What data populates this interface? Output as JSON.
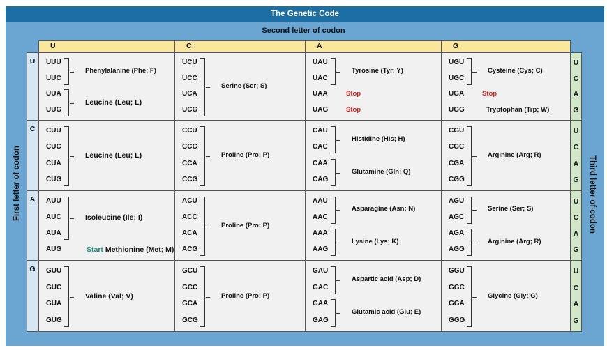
{
  "title": "The Genetic Code",
  "second_label": "Second letter of codon",
  "first_label": "First letter of codon",
  "third_label": "Third letter of codon",
  "second_letters": [
    "U",
    "C",
    "A",
    "G"
  ],
  "first_letters": [
    "U",
    "C",
    "A",
    "G"
  ],
  "third_letters": [
    "U",
    "C",
    "A",
    "G"
  ],
  "cells": [
    [
      {
        "codons": [
          "UUU",
          "UUC",
          "UUA",
          "UUG"
        ],
        "groups": [
          {
            "rows": [
              0,
              1
            ],
            "label": "Phenylalanine (Phe; F)"
          },
          {
            "rows": [
              2,
              3
            ],
            "label": "Leucine (Leu; L)",
            "big": true
          }
        ]
      },
      {
        "codons": [
          "UCU",
          "UCC",
          "UCA",
          "UCG"
        ],
        "groups": [
          {
            "rows": [
              0,
              3
            ],
            "label": "Serine (Ser; S)"
          }
        ]
      },
      {
        "codons": [
          "UAU",
          "UAC",
          "UAA",
          "UAG"
        ],
        "groups": [
          {
            "rows": [
              0,
              1
            ],
            "label": "Tyrosine (Tyr; Y)"
          },
          {
            "rows": [
              2
            ],
            "label": "Stop",
            "stop": true
          },
          {
            "rows": [
              3
            ],
            "label": "Stop",
            "stop": true
          }
        ]
      },
      {
        "codons": [
          "UGU",
          "UGC",
          "UGA",
          "UGG"
        ],
        "groups": [
          {
            "rows": [
              0,
              1
            ],
            "label": "Cysteine (Cys; C)"
          },
          {
            "rows": [
              2
            ],
            "label": "Stop",
            "stop": true
          },
          {
            "rows": [
              3
            ],
            "label": "Tryptophan (Trp; W)"
          }
        ]
      }
    ],
    [
      {
        "codons": [
          "CUU",
          "CUC",
          "CUA",
          "CUG"
        ],
        "groups": [
          {
            "rows": [
              0,
              3
            ],
            "label": "Leucine (Leu; L)",
            "big": true
          }
        ]
      },
      {
        "codons": [
          "CCU",
          "CCC",
          "CCA",
          "CCG"
        ],
        "groups": [
          {
            "rows": [
              0,
              3
            ],
            "label": "Proline (Pro; P)"
          }
        ]
      },
      {
        "codons": [
          "CAU",
          "CAC",
          "CAA",
          "CAG"
        ],
        "groups": [
          {
            "rows": [
              0,
              1
            ],
            "label": "Histidine (His; H)"
          },
          {
            "rows": [
              2,
              3
            ],
            "label": "Glutamine (Gln; Q)"
          }
        ]
      },
      {
        "codons": [
          "CGU",
          "CGC",
          "CGA",
          "CGG"
        ],
        "groups": [
          {
            "rows": [
              0,
              3
            ],
            "label": "Arginine (Arg; R)"
          }
        ]
      }
    ],
    [
      {
        "codons": [
          "AUU",
          "AUC",
          "AUA",
          "AUG"
        ],
        "groups": [
          {
            "rows": [
              0,
              2
            ],
            "label": "Isoleucine (Ile; I)",
            "big": true
          },
          {
            "rows": [
              3
            ],
            "label": "Methionine (Met; M)",
            "prefix": "Start",
            "big": true
          }
        ]
      },
      {
        "codons": [
          "ACU",
          "ACC",
          "ACA",
          "ACG"
        ],
        "groups": [
          {
            "rows": [
              0,
              3
            ],
            "label": "Proline (Pro; P)"
          }
        ]
      },
      {
        "codons": [
          "AAU",
          "AAC",
          "AAA",
          "AAG"
        ],
        "groups": [
          {
            "rows": [
              0,
              1
            ],
            "label": "Asparagine (Asn; N)"
          },
          {
            "rows": [
              2,
              3
            ],
            "label": "Lysine (Lys; K)"
          }
        ]
      },
      {
        "codons": [
          "AGU",
          "AGC",
          "AGA",
          "AGG"
        ],
        "groups": [
          {
            "rows": [
              0,
              1
            ],
            "label": "Serine (Ser; S)"
          },
          {
            "rows": [
              2,
              3
            ],
            "label": "Arginine (Arg; R)"
          }
        ]
      }
    ],
    [
      {
        "codons": [
          "GUU",
          "GUC",
          "GUA",
          "GUG"
        ],
        "groups": [
          {
            "rows": [
              0,
              3
            ],
            "label": "Valine (Val; V)",
            "big": true
          }
        ]
      },
      {
        "codons": [
          "GCU",
          "GCC",
          "GCA",
          "GCG"
        ],
        "groups": [
          {
            "rows": [
              0,
              3
            ],
            "label": "Proline (Pro; P)"
          }
        ]
      },
      {
        "codons": [
          "GAU",
          "GAC",
          "GAA",
          "GAG"
        ],
        "groups": [
          {
            "rows": [
              0,
              1
            ],
            "label": "Aspartic acid (Asp; D)"
          },
          {
            "rows": [
              2,
              3
            ],
            "label": "Glutamic acid (Glu; E)"
          }
        ]
      },
      {
        "codons": [
          "GGU",
          "GGC",
          "GGA",
          "GGG"
        ],
        "groups": [
          {
            "rows": [
              0,
              3
            ],
            "label": "Glycine (Gly; G)"
          }
        ]
      }
    ]
  ]
}
